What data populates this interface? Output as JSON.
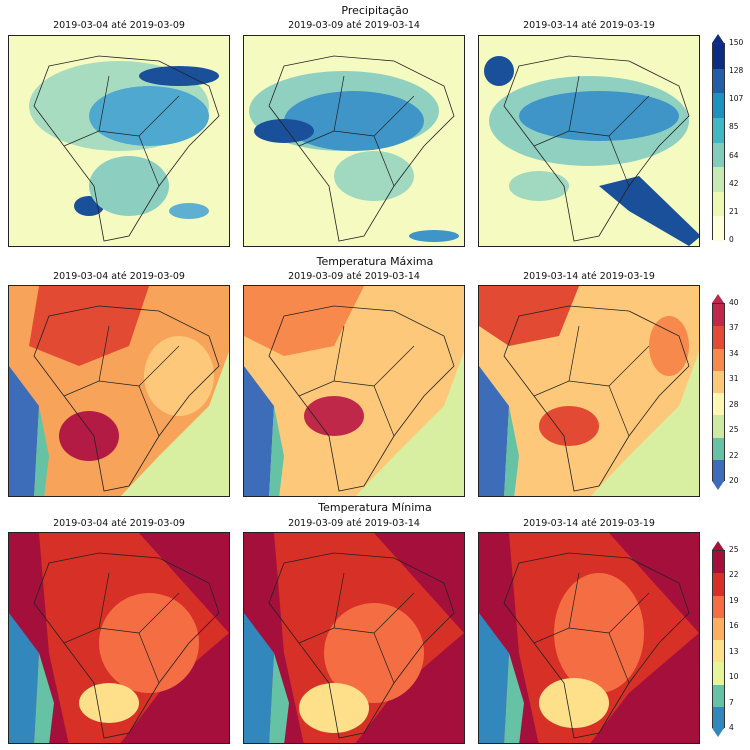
{
  "rows": [
    {
      "title": "Precipitação",
      "panels": [
        "2019-03-04 até 2019-03-09",
        "2019-03-09 até 2019-03-14",
        "2019-03-14 até 2019-03-19"
      ],
      "colorbar": {
        "ticks": [
          "150",
          "128",
          "107",
          "85",
          "64",
          "42",
          "21",
          "0"
        ],
        "colors": [
          "#0c2c84",
          "#225ea8",
          "#1d91c0",
          "#41b6c4",
          "#7fcdbb",
          "#c7e9b4",
          "#edf8b1",
          "#ffffd9"
        ]
      }
    },
    {
      "title": "Temperatura Máxima",
      "panels": [
        "2019-03-04 até 2019-03-09",
        "2019-03-09 até 2019-03-14",
        "2019-03-14 até 2019-03-19"
      ],
      "colorbar": {
        "ticks": [
          "40",
          "37",
          "34",
          "31",
          "28",
          "25",
          "22",
          "20"
        ],
        "colors": [
          "#c0284a",
          "#e34a33",
          "#f7894d",
          "#fdc879",
          "#fff6b2",
          "#cdeaa0",
          "#66c2a5",
          "#3d6db8"
        ]
      }
    },
    {
      "title": "Temperatura Mínima",
      "panels": [
        "2019-03-04 até 2019-03-09",
        "2019-03-09 até 2019-03-14",
        "2019-03-14 até 2019-03-19"
      ],
      "colorbar": {
        "ticks": [
          "25",
          "22",
          "19",
          "16",
          "13",
          "10",
          "7",
          "4"
        ],
        "colors": [
          "#a50f3c",
          "#d73027",
          "#f46d43",
          "#fdae61",
          "#fee08b",
          "#e6f598",
          "#66c2a5",
          "#3288bd"
        ]
      }
    }
  ]
}
